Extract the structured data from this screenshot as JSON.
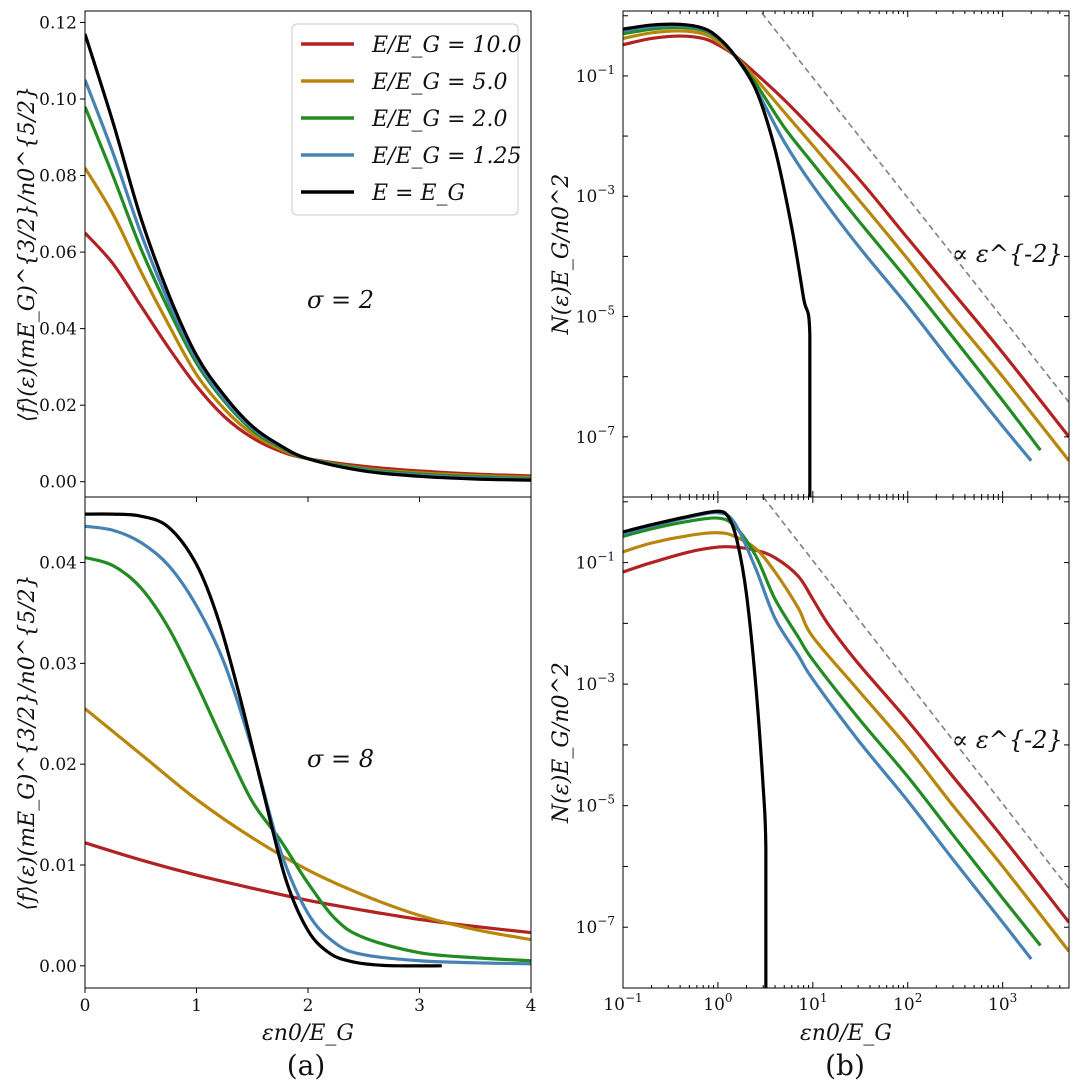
{
  "colors": {
    "E10": "#b22222",
    "E5": "#b8860b",
    "E2": "#228b22",
    "E125": "#4682b4",
    "E1": "#000000",
    "guide": "#808080"
  },
  "legend": [
    {
      "key": "E10",
      "label": "E/E_G = 10.0"
    },
    {
      "key": "E5",
      "label": "E/E_G = 5.0"
    },
    {
      "key": "E2",
      "label": "E/E_G = 2.0"
    },
    {
      "key": "E125",
      "label": "E/E_G = 1.25"
    },
    {
      "key": "E1",
      "label": "E = E_G"
    }
  ],
  "panel_labels": {
    "a": "(a)",
    "b": "(b)"
  },
  "chart_data": [
    {
      "type": "line",
      "id": "top-left",
      "annotation": "σ = 2",
      "ylabel": "⟨f⟩(ε)(mE_G)^{3/2}/n0^{5/2}",
      "xlabel": "",
      "xlim": [
        0,
        4
      ],
      "ylim": [
        -0.004,
        0.123
      ],
      "xticks": [
        1,
        2,
        3
      ],
      "yticks": [
        0.0,
        0.02,
        0.04,
        0.06,
        0.08,
        0.1,
        0.12
      ],
      "ytick_labels": [
        "0.00",
        "0.02",
        "0.04",
        "0.06",
        "0.08",
        "0.10",
        "0.12"
      ],
      "series": [
        {
          "key": "E10",
          "x": [
            0,
            0.25,
            0.5,
            0.75,
            1.0,
            1.25,
            1.5,
            1.75,
            2.0,
            2.5,
            3.0,
            3.5,
            4.0
          ],
          "y": [
            0.065,
            0.057,
            0.046,
            0.035,
            0.025,
            0.017,
            0.0115,
            0.008,
            0.006,
            0.004,
            0.0028,
            0.002,
            0.0015
          ]
        },
        {
          "key": "E5",
          "x": [
            0,
            0.25,
            0.5,
            0.75,
            1.0,
            1.25,
            1.5,
            1.75,
            2.0,
            2.5,
            3.0,
            3.5,
            4.0
          ],
          "y": [
            0.082,
            0.07,
            0.055,
            0.041,
            0.028,
            0.019,
            0.0125,
            0.0085,
            0.006,
            0.0035,
            0.0023,
            0.0016,
            0.0011
          ]
        },
        {
          "key": "E2",
          "x": [
            0,
            0.25,
            0.5,
            0.75,
            1.0,
            1.25,
            1.5,
            1.75,
            2.0,
            2.5,
            3.0,
            3.5,
            4.0
          ],
          "y": [
            0.098,
            0.08,
            0.061,
            0.045,
            0.031,
            0.021,
            0.0135,
            0.009,
            0.006,
            0.0033,
            0.002,
            0.0013,
            0.0008
          ]
        },
        {
          "key": "E125",
          "x": [
            0,
            0.25,
            0.5,
            0.75,
            1.0,
            1.25,
            1.5,
            1.75,
            2.0,
            2.5,
            3.0,
            3.5,
            4.0
          ],
          "y": [
            0.105,
            0.086,
            0.065,
            0.047,
            0.032,
            0.0215,
            0.014,
            0.0093,
            0.006,
            0.003,
            0.0017,
            0.001,
            0.0006
          ]
        },
        {
          "key": "E1",
          "x": [
            0,
            0.25,
            0.5,
            0.75,
            1.0,
            1.25,
            1.5,
            1.75,
            2.0,
            2.5,
            3.0,
            3.5,
            4.0
          ],
          "y": [
            0.117,
            0.094,
            0.069,
            0.049,
            0.033,
            0.0225,
            0.0145,
            0.0095,
            0.006,
            0.0028,
            0.0014,
            0.0007,
            0.0004
          ]
        }
      ]
    },
    {
      "type": "line",
      "id": "top-right",
      "scale": "log",
      "annotation": "∝ ε^{-2}",
      "ylabel": "N(ε)E_G/n0^2",
      "xlabel": "",
      "xlim": [
        0.1,
        5000
      ],
      "ylim": [
        1e-08,
        1.2
      ],
      "ytick_exponents": [
        -7,
        -5,
        -3,
        -1
      ],
      "guide": {
        "x": [
          2.5,
          5000
        ],
        "y": [
          1.5,
          3.75e-07
        ]
      },
      "series": [
        {
          "key": "E10",
          "x": [
            0.1,
            0.2,
            0.4,
            0.7,
            1.0,
            1.5,
            2.5,
            5,
            10,
            30,
            100,
            300,
            1000,
            5000
          ],
          "y": [
            0.33,
            0.42,
            0.46,
            0.42,
            0.33,
            0.22,
            0.11,
            0.04,
            0.013,
            0.002,
            0.0002,
            2.5e-05,
            2.5e-06,
            1e-07
          ]
        },
        {
          "key": "E5",
          "x": [
            0.1,
            0.2,
            0.4,
            0.7,
            1.0,
            1.5,
            2.5,
            5,
            10,
            30,
            100,
            300,
            1000,
            5000
          ],
          "y": [
            0.42,
            0.52,
            0.56,
            0.5,
            0.37,
            0.22,
            0.09,
            0.025,
            0.007,
            0.0009,
            9e-05,
            1e-05,
            1e-06,
            4e-08
          ]
        },
        {
          "key": "E2",
          "x": [
            0.1,
            0.2,
            0.4,
            0.7,
            1.0,
            1.5,
            2.5,
            5,
            10,
            30,
            100,
            300,
            1000,
            2500
          ],
          "y": [
            0.5,
            0.6,
            0.64,
            0.57,
            0.42,
            0.22,
            0.075,
            0.014,
            0.0035,
            0.0004,
            4e-05,
            4.5e-06,
            4e-07,
            6e-08
          ]
        },
        {
          "key": "E125",
          "x": [
            0.1,
            0.2,
            0.4,
            0.7,
            1.0,
            1.5,
            2.5,
            5,
            10,
            30,
            100,
            300,
            1000,
            2000
          ],
          "y": [
            0.56,
            0.66,
            0.69,
            0.6,
            0.43,
            0.22,
            0.062,
            0.008,
            0.0015,
            0.00015,
            1.5e-05,
            1.6e-06,
            1.5e-07,
            4e-08
          ]
        },
        {
          "key": "E1",
          "x": [
            0.1,
            0.2,
            0.4,
            0.7,
            1.0,
            1.5,
            2.5,
            4,
            6,
            8,
            9.3,
            9.3
          ],
          "y": [
            0.6,
            0.7,
            0.72,
            0.62,
            0.44,
            0.22,
            0.06,
            0.006,
            0.0003,
            2e-05,
            5e-06,
            1e-08
          ]
        }
      ]
    },
    {
      "type": "line",
      "id": "bottom-left",
      "annotation": "σ = 8",
      "ylabel": "⟨f⟩(ε)(mE_G)^{3/2}/n0^{5/2}",
      "xlabel": "εn0/E_G",
      "xlim": [
        0,
        4
      ],
      "ylim": [
        -0.0022,
        0.0465
      ],
      "xticks": [
        0,
        1,
        2,
        3,
        4
      ],
      "yticks": [
        0.0,
        0.01,
        0.02,
        0.03,
        0.04
      ],
      "ytick_labels": [
        "0.00",
        "0.01",
        "0.02",
        "0.03",
        "0.04"
      ],
      "series": [
        {
          "key": "E10",
          "x": [
            0,
            0.5,
            1.0,
            1.5,
            2.0,
            2.5,
            3.0,
            3.5,
            4.0
          ],
          "y": [
            0.0122,
            0.0105,
            0.009,
            0.0077,
            0.0065,
            0.0055,
            0.0046,
            0.0039,
            0.0033
          ]
        },
        {
          "key": "E5",
          "x": [
            0,
            0.5,
            1.0,
            1.5,
            2.0,
            2.5,
            3.0,
            3.5,
            4.0
          ],
          "y": [
            0.0255,
            0.021,
            0.0165,
            0.0127,
            0.0095,
            0.007,
            0.005,
            0.0036,
            0.0026
          ]
        },
        {
          "key": "E2",
          "x": [
            0,
            0.25,
            0.5,
            0.75,
            1.0,
            1.25,
            1.5,
            1.75,
            2.0,
            2.25,
            2.5,
            3.0,
            3.5,
            4.0
          ],
          "y": [
            0.0405,
            0.0397,
            0.0375,
            0.0335,
            0.028,
            0.022,
            0.0163,
            0.0125,
            0.0082,
            0.0046,
            0.0028,
            0.0013,
            0.0008,
            0.0005
          ]
        },
        {
          "key": "E125",
          "x": [
            0,
            0.25,
            0.5,
            0.75,
            1.0,
            1.25,
            1.5,
            1.75,
            2.0,
            2.25,
            2.5,
            3.0,
            3.5,
            4.0
          ],
          "y": [
            0.0436,
            0.0432,
            0.042,
            0.0397,
            0.0357,
            0.03,
            0.0215,
            0.0115,
            0.0052,
            0.0022,
            0.0011,
            0.0005,
            0.0003,
            0.0002
          ]
        },
        {
          "key": "E1",
          "x": [
            0,
            0.25,
            0.5,
            0.75,
            1.0,
            1.2,
            1.4,
            1.6,
            1.8,
            2.0,
            2.2,
            2.4,
            2.6,
            2.8,
            3.2
          ],
          "y": [
            0.0448,
            0.0448,
            0.0446,
            0.0435,
            0.0398,
            0.0342,
            0.0262,
            0.0172,
            0.0086,
            0.0035,
            0.0012,
            0.0004,
            0.0001,
            0.0,
            0.0
          ]
        }
      ]
    },
    {
      "type": "line",
      "id": "bottom-right",
      "scale": "log",
      "annotation": "∝ ε^{-2}",
      "ylabel": "N(ε)E_G/n0^2",
      "xlabel": "εn0/E_G",
      "xlim": [
        0.1,
        5000
      ],
      "ylim": [
        1e-08,
        1.2
      ],
      "xtick_exponents": [
        -1,
        0,
        1,
        2,
        3
      ],
      "ytick_exponents": [
        -7,
        -5,
        -3,
        -1
      ],
      "guide": {
        "x": [
          3,
          5000
        ],
        "y": [
          1.2,
          4.3e-07
        ]
      },
      "series": [
        {
          "key": "E10",
          "x": [
            0.1,
            0.2,
            0.5,
            1.0,
            1.5,
            2.5,
            4,
            7,
            10,
            15,
            30,
            100,
            300,
            1000,
            5000
          ],
          "y": [
            0.07,
            0.1,
            0.15,
            0.18,
            0.18,
            0.16,
            0.12,
            0.06,
            0.025,
            0.009,
            0.0022,
            0.00025,
            3e-05,
            3e-06,
            1.2e-07
          ]
        },
        {
          "key": "E5",
          "x": [
            0.1,
            0.2,
            0.5,
            1.0,
            1.5,
            2.5,
            4,
            7,
            10,
            30,
            100,
            300,
            1000,
            5000
          ],
          "y": [
            0.15,
            0.21,
            0.28,
            0.31,
            0.27,
            0.17,
            0.07,
            0.018,
            0.006,
            0.0008,
            9e-05,
            1e-05,
            1e-06,
            4e-08
          ]
        },
        {
          "key": "E2",
          "x": [
            0.1,
            0.2,
            0.5,
            1.0,
            1.5,
            2.5,
            4,
            7,
            10,
            30,
            100,
            300,
            1000,
            2500
          ],
          "y": [
            0.27,
            0.36,
            0.48,
            0.54,
            0.4,
            0.13,
            0.025,
            0.006,
            0.0025,
            0.00028,
            3e-05,
            3.3e-06,
            3e-07,
            5e-08
          ]
        },
        {
          "key": "E125",
          "x": [
            0.1,
            0.2,
            0.5,
            1.0,
            1.5,
            2.5,
            4,
            7,
            10,
            30,
            100,
            300,
            1000,
            2000
          ],
          "y": [
            0.3,
            0.4,
            0.56,
            0.66,
            0.45,
            0.08,
            0.012,
            0.003,
            0.0012,
            0.00012,
            1.2e-05,
            1.3e-06,
            1.2e-07,
            3e-08
          ]
        },
        {
          "key": "E1",
          "x": [
            0.1,
            0.2,
            0.5,
            1.0,
            1.3,
            1.6,
            2.0,
            2.5,
            3.0,
            3.2,
            3.2
          ],
          "y": [
            0.32,
            0.42,
            0.58,
            0.7,
            0.55,
            0.22,
            0.03,
            0.001,
            2e-05,
            2e-06,
            1e-08
          ]
        }
      ]
    }
  ]
}
